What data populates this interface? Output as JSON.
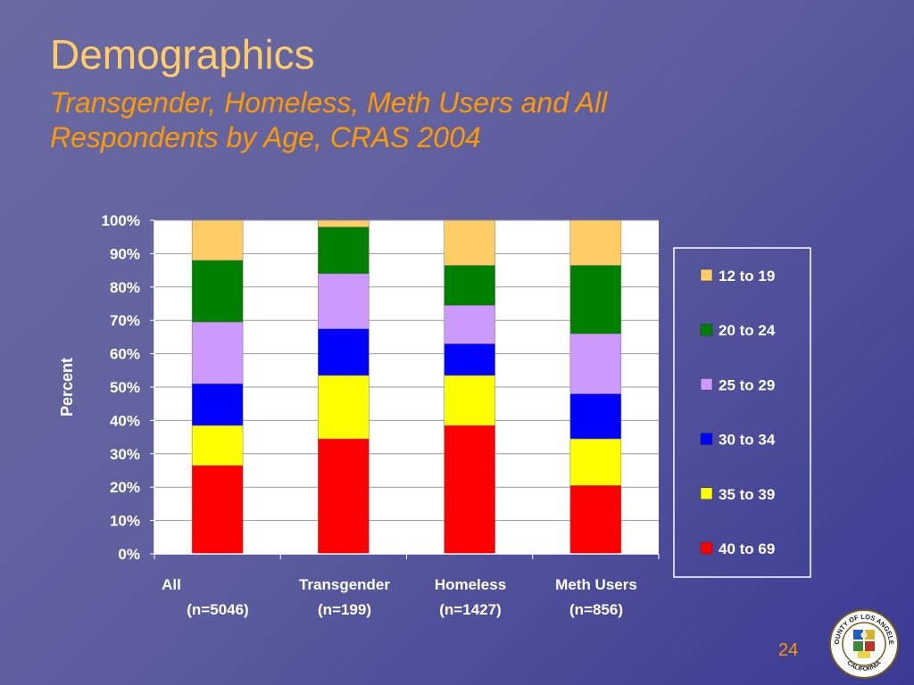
{
  "slide": {
    "title": "Demographics",
    "subtitle": "Transgender, Homeless, Meth Users and All Respondents by Age, CRAS 2004",
    "page_number": "24"
  },
  "seal": {
    "text_top": "COUNTY OF LOS ANGELES",
    "text_bottom": "CALIFORNIA"
  },
  "chart_data": {
    "type": "bar",
    "stacked": true,
    "ylabel": "Percent",
    "ylim": [
      0,
      100
    ],
    "yticks": [
      "0%",
      "10%",
      "20%",
      "30%",
      "40%",
      "50%",
      "60%",
      "70%",
      "80%",
      "90%",
      "100%"
    ],
    "grid": true,
    "legend_position": "right",
    "categories": [
      {
        "name": "All",
        "n": "(n=5046)"
      },
      {
        "name": "Transgender",
        "n": "(n=199)"
      },
      {
        "name": "Homeless",
        "n": "(n=1427)"
      },
      {
        "name": "Meth Users",
        "n": "(n=856)"
      }
    ],
    "series": [
      {
        "name": "40 to 69",
        "color": "#ff0000",
        "values": [
          26.5,
          34.5,
          38.5,
          20.5
        ]
      },
      {
        "name": "35 to 39",
        "color": "#ffff00",
        "values": [
          12,
          19,
          15,
          14
        ]
      },
      {
        "name": "30 to 34",
        "color": "#0000ff",
        "values": [
          12.5,
          14,
          9.5,
          13.5
        ]
      },
      {
        "name": "25 to 29",
        "color": "#cc99ff",
        "values": [
          18.5,
          16.5,
          11.5,
          18
        ]
      },
      {
        "name": "20 to 24",
        "color": "#008000",
        "values": [
          18.5,
          14,
          12,
          20.5
        ]
      },
      {
        "name": "12 to 19",
        "color": "#ffcc66",
        "values": [
          12,
          2,
          13.5,
          13.5
        ]
      }
    ]
  }
}
